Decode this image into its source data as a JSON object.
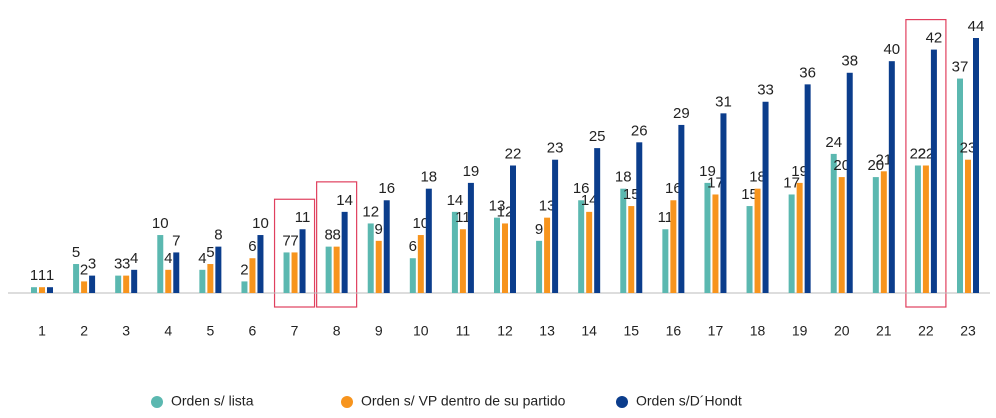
{
  "chart_data": {
    "type": "bar",
    "categories": [
      "1",
      "2",
      "3",
      "4",
      "5",
      "6",
      "7",
      "8",
      "9",
      "10",
      "11",
      "12",
      "13",
      "14",
      "15",
      "16",
      "17",
      "18",
      "19",
      "20",
      "21",
      "22",
      "23"
    ],
    "series": [
      {
        "name": "Orden s/ lista",
        "color": "#5bb8b0",
        "values": [
          1,
          5,
          3,
          10,
          4,
          2,
          7,
          8,
          12,
          6,
          14,
          13,
          9,
          16,
          18,
          11,
          19,
          15,
          17,
          24,
          20,
          22,
          37
        ]
      },
      {
        "name": "Orden s/ VP dentro de su partido",
        "color": "#f7941d",
        "values": [
          1,
          2,
          3,
          4,
          5,
          6,
          7,
          8,
          9,
          10,
          11,
          12,
          13,
          14,
          15,
          16,
          17,
          18,
          19,
          20,
          21,
          22,
          23
        ]
      },
      {
        "name": "Orden s/D´Hondt",
        "color": "#0b3d8c",
        "values": [
          1,
          3,
          4,
          7,
          8,
          10,
          11,
          14,
          16,
          18,
          19,
          22,
          23,
          25,
          26,
          29,
          31,
          33,
          36,
          38,
          40,
          42,
          44
        ]
      }
    ],
    "highlight": [
      "7",
      "8",
      "22"
    ],
    "highlight_color": "#e0405e",
    "legend": "bottom"
  }
}
